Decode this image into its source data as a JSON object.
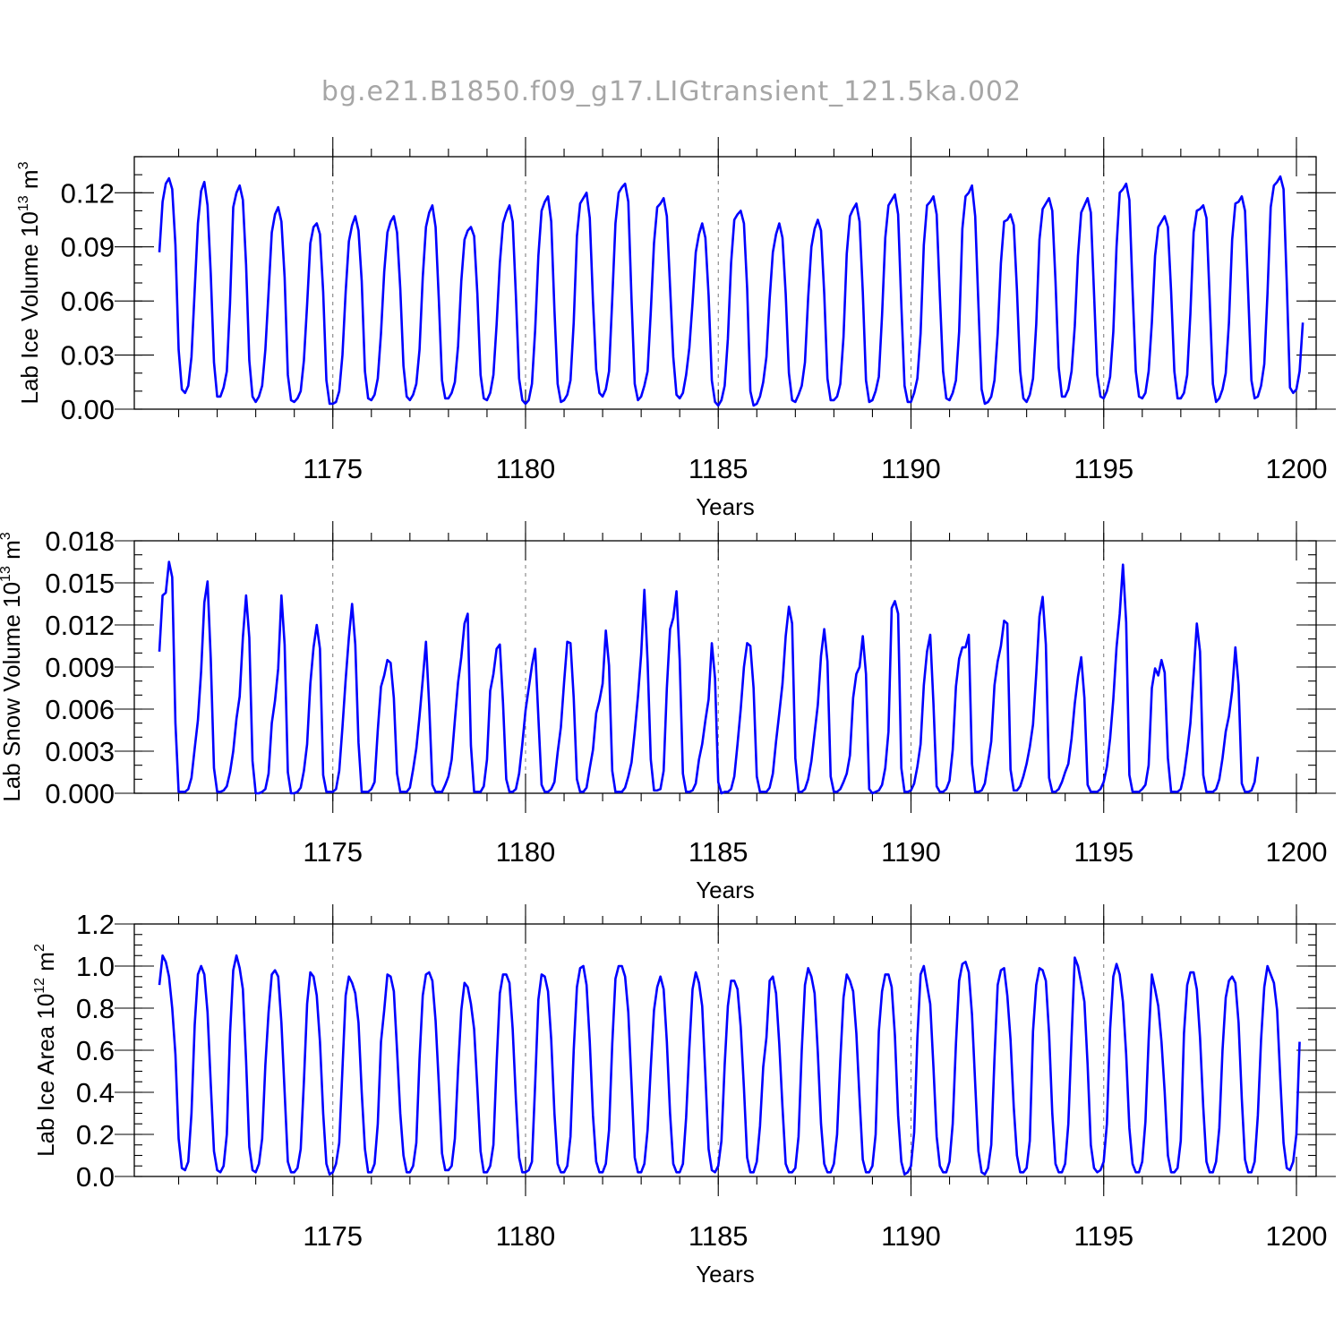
{
  "figure": {
    "title": "bg.e21.B1850.f09_g17.LIGtransient_121.5ka.002"
  },
  "chart_data": [
    {
      "type": "line",
      "xlabel": "Years",
      "ylabel": "Lab Ice Volume 10",
      "ylabel_exp": "13",
      "ylabel_unit": " m",
      "ylabel_unit_exp": "3",
      "xlim": [
        1170.5,
        1200
      ],
      "ylim": [
        0,
        0.14
      ],
      "x_ticks": [
        1175,
        1180,
        1185,
        1190,
        1195,
        1200
      ],
      "y_ticks": [
        0,
        0.03,
        0.06,
        0.09,
        0.12
      ],
      "y_tick_labels": [
        "0.00",
        "0.03",
        "0.06",
        "0.09",
        "0.12"
      ],
      "y_minor_step": 0.01,
      "grid": "dashed vertical at 1175, 1180, 1185, 1190, 1195",
      "color": "#0000ff",
      "x_start": 1170.5,
      "x_step": 0.08333,
      "values": [
        0.087,
        0.115,
        0.125,
        0.128,
        0.122,
        0.091,
        0.033,
        0.011,
        0.009,
        0.013,
        0.029,
        0.066,
        0.103,
        0.121,
        0.126,
        0.113,
        0.075,
        0.026,
        0.007,
        0.007,
        0.012,
        0.021,
        0.059,
        0.112,
        0.12,
        0.124,
        0.116,
        0.08,
        0.027,
        0.007,
        0.004,
        0.007,
        0.013,
        0.033,
        0.065,
        0.098,
        0.108,
        0.112,
        0.104,
        0.073,
        0.019,
        0.005,
        0.004,
        0.006,
        0.01,
        0.027,
        0.058,
        0.092,
        0.101,
        0.103,
        0.097,
        0.065,
        0.016,
        0.003,
        0.003,
        0.004,
        0.01,
        0.03,
        0.065,
        0.093,
        0.102,
        0.107,
        0.099,
        0.071,
        0.021,
        0.006,
        0.005,
        0.008,
        0.017,
        0.042,
        0.076,
        0.098,
        0.104,
        0.107,
        0.098,
        0.067,
        0.024,
        0.007,
        0.005,
        0.008,
        0.014,
        0.033,
        0.073,
        0.101,
        0.109,
        0.113,
        0.101,
        0.061,
        0.016,
        0.006,
        0.006,
        0.009,
        0.015,
        0.035,
        0.071,
        0.094,
        0.099,
        0.101,
        0.096,
        0.064,
        0.019,
        0.006,
        0.005,
        0.009,
        0.019,
        0.047,
        0.081,
        0.103,
        0.109,
        0.113,
        0.104,
        0.063,
        0.017,
        0.005,
        0.003,
        0.005,
        0.014,
        0.044,
        0.085,
        0.11,
        0.115,
        0.118,
        0.104,
        0.055,
        0.014,
        0.004,
        0.005,
        0.008,
        0.016,
        0.048,
        0.096,
        0.114,
        0.117,
        0.12,
        0.106,
        0.06,
        0.022,
        0.009,
        0.007,
        0.011,
        0.021,
        0.061,
        0.103,
        0.12,
        0.123,
        0.125,
        0.115,
        0.061,
        0.014,
        0.005,
        0.007,
        0.013,
        0.021,
        0.054,
        0.092,
        0.112,
        0.114,
        0.117,
        0.107,
        0.068,
        0.029,
        0.008,
        0.006,
        0.009,
        0.019,
        0.034,
        0.059,
        0.087,
        0.097,
        0.103,
        0.095,
        0.063,
        0.016,
        0.004,
        0.002,
        0.005,
        0.013,
        0.039,
        0.081,
        0.105,
        0.108,
        0.11,
        0.103,
        0.067,
        0.01,
        0.002,
        0.003,
        0.007,
        0.015,
        0.029,
        0.061,
        0.087,
        0.097,
        0.103,
        0.095,
        0.064,
        0.02,
        0.005,
        0.004,
        0.008,
        0.013,
        0.026,
        0.062,
        0.09,
        0.1,
        0.105,
        0.099,
        0.064,
        0.017,
        0.005,
        0.005,
        0.007,
        0.014,
        0.04,
        0.086,
        0.107,
        0.111,
        0.114,
        0.104,
        0.065,
        0.016,
        0.004,
        0.005,
        0.01,
        0.018,
        0.052,
        0.095,
        0.113,
        0.116,
        0.119,
        0.108,
        0.058,
        0.013,
        0.004,
        0.004,
        0.009,
        0.017,
        0.042,
        0.091,
        0.113,
        0.115,
        0.118,
        0.108,
        0.063,
        0.021,
        0.006,
        0.005,
        0.009,
        0.016,
        0.043,
        0.1,
        0.118,
        0.12,
        0.124,
        0.107,
        0.058,
        0.011,
        0.003,
        0.004,
        0.007,
        0.016,
        0.042,
        0.081,
        0.104,
        0.105,
        0.108,
        0.102,
        0.066,
        0.021,
        0.006,
        0.004,
        0.008,
        0.017,
        0.047,
        0.094,
        0.111,
        0.114,
        0.117,
        0.11,
        0.071,
        0.023,
        0.007,
        0.007,
        0.011,
        0.021,
        0.046,
        0.085,
        0.109,
        0.113,
        0.117,
        0.109,
        0.064,
        0.019,
        0.007,
        0.006,
        0.01,
        0.018,
        0.043,
        0.09,
        0.12,
        0.122,
        0.125,
        0.116,
        0.066,
        0.021,
        0.007,
        0.006,
        0.009,
        0.021,
        0.048,
        0.085,
        0.101,
        0.104,
        0.107,
        0.101,
        0.065,
        0.021,
        0.006,
        0.006,
        0.009,
        0.019,
        0.053,
        0.098,
        0.11,
        0.111,
        0.113,
        0.106,
        0.061,
        0.014,
        0.004,
        0.006,
        0.011,
        0.02,
        0.048,
        0.094,
        0.114,
        0.115,
        0.118,
        0.11,
        0.064,
        0.016,
        0.006,
        0.007,
        0.013,
        0.025,
        0.064,
        0.112,
        0.124,
        0.126,
        0.129,
        0.122,
        0.07,
        0.012,
        0.009,
        0.011,
        0.021,
        0.048
      ]
    },
    {
      "type": "line",
      "xlabel": "Years",
      "ylabel": "Lab Snow Volume 10",
      "ylabel_exp": "13",
      "ylabel_unit": " m",
      "ylabel_unit_exp": "3",
      "xlim": [
        1170.5,
        1200
      ],
      "ylim": [
        0,
        0.018
      ],
      "x_ticks": [
        1175,
        1180,
        1185,
        1190,
        1195,
        1200
      ],
      "y_ticks": [
        0,
        0.003,
        0.006,
        0.009,
        0.012,
        0.015,
        0.018
      ],
      "y_tick_labels": [
        "0.000",
        "0.003",
        "0.006",
        "0.009",
        "0.012",
        "0.015",
        "0.018"
      ],
      "y_minor_step": 0.001,
      "grid": "dashed vertical at 1175, 1180, 1185, 1190, 1195",
      "color": "#0000ff",
      "x_start": 1170.5,
      "x_step": 0.08333,
      "values": [
        0.0101,
        0.0141,
        0.0143,
        0.0165,
        0.0154,
        0.005,
        0.0001,
        0.0001,
        0.0001,
        0.0003,
        0.0011,
        0.0032,
        0.0052,
        0.0087,
        0.0136,
        0.0151,
        0.0096,
        0.0018,
        0.0001,
        0.0001,
        0.0002,
        0.0005,
        0.0015,
        0.003,
        0.0053,
        0.0069,
        0.0111,
        0.0141,
        0.0111,
        0.0023,
        0,
        0,
        0.0001,
        0.0003,
        0.0014,
        0.005,
        0.0066,
        0.0089,
        0.0141,
        0.0106,
        0.0015,
        0,
        0,
        0.0001,
        0.0004,
        0.0016,
        0.0035,
        0.0078,
        0.0104,
        0.012,
        0.0103,
        0.0013,
        0.0001,
        0.0001,
        0.0001,
        0.0003,
        0.0016,
        0.0047,
        0.0081,
        0.0111,
        0.0135,
        0.0106,
        0.0036,
        0.0001,
        0.0001,
        0.0001,
        0.0003,
        0.0008,
        0.0045,
        0.0076,
        0.0084,
        0.0095,
        0.0093,
        0.0068,
        0.0014,
        0.0001,
        0.0001,
        0.0001,
        0.0004,
        0.0017,
        0.0032,
        0.0055,
        0.0081,
        0.0108,
        0.0063,
        0.0006,
        0.0001,
        0.0001,
        0.0001,
        0.0006,
        0.0012,
        0.0024,
        0.0052,
        0.0079,
        0.0097,
        0.0121,
        0.0128,
        0.0034,
        0.0001,
        0.0001,
        0.0001,
        0.0005,
        0.0024,
        0.0073,
        0.0085,
        0.0103,
        0.0106,
        0.0064,
        0.001,
        0.0001,
        0.0001,
        0.0003,
        0.0014,
        0.0035,
        0.0059,
        0.0075,
        0.0091,
        0.0103,
        0.0054,
        0.0006,
        0.0001,
        0.0001,
        0.0003,
        0.0008,
        0.0029,
        0.0047,
        0.0079,
        0.0108,
        0.0107,
        0.0068,
        0.001,
        0.0001,
        0.0001,
        0.0004,
        0.0018,
        0.0031,
        0.0057,
        0.0066,
        0.0078,
        0.0116,
        0.0091,
        0.0016,
        0.0001,
        0.0001,
        0.0001,
        0.0004,
        0.0012,
        0.0022,
        0.0044,
        0.0069,
        0.0099,
        0.0145,
        0.0094,
        0.0024,
        0.0002,
        0.0002,
        0.0003,
        0.0016,
        0.0075,
        0.0117,
        0.0125,
        0.0144,
        0.0095,
        0.0014,
        0.0001,
        0.0001,
        0.0002,
        0.0007,
        0.0024,
        0.0035,
        0.0052,
        0.0067,
        0.0107,
        0.0082,
        0.0008,
        0,
        0.0001,
        0.0001,
        0.0003,
        0.0012,
        0.0035,
        0.006,
        0.009,
        0.0107,
        0.0105,
        0.0075,
        0.0012,
        0.0001,
        0.0001,
        0.0001,
        0.0004,
        0.0014,
        0.0037,
        0.0057,
        0.0078,
        0.0112,
        0.0133,
        0.0121,
        0.0025,
        0.0001,
        0.0001,
        0.0003,
        0.001,
        0.0023,
        0.0043,
        0.0063,
        0.0098,
        0.0117,
        0.0094,
        0.0012,
        0.0001,
        0.0001,
        0.0003,
        0.0008,
        0.0014,
        0.0027,
        0.0068,
        0.0085,
        0.009,
        0.0112,
        0.0085,
        0.0003,
        0,
        0.0001,
        0.0002,
        0.0006,
        0.0018,
        0.0044,
        0.0132,
        0.0137,
        0.0128,
        0.0018,
        0.0001,
        0.0001,
        0.0002,
        0.0007,
        0.0019,
        0.0035,
        0.0077,
        0.0101,
        0.0113,
        0.0064,
        0.0005,
        0.0001,
        0.0001,
        0.0003,
        0.0009,
        0.0031,
        0.0076,
        0.0096,
        0.0104,
        0.0104,
        0.0113,
        0.0021,
        0.0001,
        0.0001,
        0.0002,
        0.0007,
        0.0022,
        0.0037,
        0.0077,
        0.0094,
        0.0105,
        0.0123,
        0.0121,
        0.0017,
        0.0002,
        0.0002,
        0.0005,
        0.0012,
        0.0021,
        0.0033,
        0.0049,
        0.0085,
        0.0126,
        0.014,
        0.0106,
        0.0011,
        0.0001,
        0.0001,
        0.0003,
        0.0008,
        0.0015,
        0.0021,
        0.0039,
        0.0064,
        0.0083,
        0.0097,
        0.0068,
        0.0006,
        0.0001,
        0.0001,
        0.0001,
        0.0003,
        0.0008,
        0.0019,
        0.0039,
        0.0067,
        0.0104,
        0.0128,
        0.0163,
        0.0122,
        0.0013,
        0.0001,
        0.0001,
        0.0001,
        0.0003,
        0.0006,
        0.002,
        0.0075,
        0.0089,
        0.0084,
        0.0095,
        0.0086,
        0.0025,
        0.0001,
        0.0001,
        0.0001,
        0.0003,
        0.0013,
        0.003,
        0.005,
        0.0085,
        0.0121,
        0.0101,
        0.0013,
        0.0001,
        0.0001,
        0.0001,
        0.0003,
        0.001,
        0.0025,
        0.0044,
        0.0055,
        0.0073,
        0.0104,
        0.0077,
        0.0007,
        0.0001,
        0.0001,
        0.0002,
        0.0008,
        0.0026
      ]
    },
    {
      "type": "line",
      "xlabel": "Years",
      "ylabel": "Lab Ice Area 10",
      "ylabel_exp": "12",
      "ylabel_unit": " m",
      "ylabel_unit_exp": "2",
      "xlim": [
        1170.5,
        1200
      ],
      "ylim": [
        0,
        1.2
      ],
      "x_ticks": [
        1175,
        1180,
        1185,
        1190,
        1195,
        1200
      ],
      "y_ticks": [
        0,
        0.2,
        0.4,
        0.6,
        0.8,
        1.0,
        1.2
      ],
      "y_tick_labels": [
        "0.0",
        "0.2",
        "0.4",
        "0.6",
        "0.8",
        "1.0",
        "1.2"
      ],
      "y_minor_step": 0.05,
      "grid": "dashed vertical at 1175, 1180, 1185, 1190, 1195",
      "color": "#0000ff",
      "x_start": 1170.5,
      "x_step": 0.08333,
      "values": [
        0.91,
        1.05,
        1.02,
        0.95,
        0.8,
        0.58,
        0.18,
        0.04,
        0.03,
        0.07,
        0.3,
        0.72,
        0.96,
        1.0,
        0.96,
        0.78,
        0.44,
        0.12,
        0.03,
        0.02,
        0.05,
        0.2,
        0.68,
        0.98,
        1.05,
        0.99,
        0.89,
        0.55,
        0.14,
        0.03,
        0.02,
        0.06,
        0.18,
        0.53,
        0.78,
        0.96,
        0.98,
        0.95,
        0.73,
        0.4,
        0.07,
        0.02,
        0.02,
        0.04,
        0.13,
        0.45,
        0.82,
        0.97,
        0.95,
        0.86,
        0.64,
        0.3,
        0.06,
        0.01,
        0.02,
        0.06,
        0.16,
        0.51,
        0.86,
        0.95,
        0.92,
        0.87,
        0.73,
        0.4,
        0.13,
        0.02,
        0.02,
        0.06,
        0.25,
        0.64,
        0.79,
        0.96,
        0.95,
        0.88,
        0.6,
        0.3,
        0.1,
        0.02,
        0.02,
        0.05,
        0.16,
        0.56,
        0.86,
        0.96,
        0.97,
        0.93,
        0.74,
        0.44,
        0.11,
        0.03,
        0.03,
        0.05,
        0.18,
        0.51,
        0.79,
        0.92,
        0.9,
        0.82,
        0.7,
        0.42,
        0.12,
        0.02,
        0.02,
        0.05,
        0.15,
        0.54,
        0.87,
        0.96,
        0.96,
        0.92,
        0.7,
        0.37,
        0.09,
        0.02,
        0.02,
        0.03,
        0.07,
        0.44,
        0.84,
        0.96,
        0.95,
        0.88,
        0.65,
        0.3,
        0.06,
        0.02,
        0.02,
        0.05,
        0.19,
        0.6,
        0.9,
        0.99,
        1.0,
        0.91,
        0.64,
        0.29,
        0.07,
        0.02,
        0.02,
        0.06,
        0.22,
        0.63,
        0.94,
        1.0,
        1.0,
        0.95,
        0.78,
        0.44,
        0.09,
        0.02,
        0.02,
        0.06,
        0.22,
        0.52,
        0.79,
        0.9,
        0.95,
        0.89,
        0.64,
        0.3,
        0.06,
        0.02,
        0.02,
        0.06,
        0.28,
        0.61,
        0.89,
        0.97,
        0.92,
        0.81,
        0.48,
        0.13,
        0.03,
        0.02,
        0.05,
        0.17,
        0.53,
        0.81,
        0.93,
        0.93,
        0.89,
        0.71,
        0.42,
        0.09,
        0.02,
        0.02,
        0.07,
        0.24,
        0.52,
        0.66,
        0.93,
        0.95,
        0.87,
        0.63,
        0.33,
        0.06,
        0.02,
        0.02,
        0.04,
        0.19,
        0.6,
        0.91,
        0.99,
        0.95,
        0.87,
        0.59,
        0.25,
        0.06,
        0.02,
        0.02,
        0.06,
        0.2,
        0.55,
        0.85,
        0.96,
        0.93,
        0.88,
        0.68,
        0.37,
        0.08,
        0.02,
        0.02,
        0.05,
        0.2,
        0.69,
        0.88,
        0.96,
        0.96,
        0.9,
        0.67,
        0.29,
        0.07,
        0.01,
        0.02,
        0.05,
        0.21,
        0.66,
        0.96,
        1.0,
        0.91,
        0.82,
        0.52,
        0.19,
        0.05,
        0.02,
        0.02,
        0.07,
        0.25,
        0.63,
        0.93,
        1.01,
        1.02,
        0.97,
        0.77,
        0.44,
        0.12,
        0.02,
        0.01,
        0.04,
        0.15,
        0.56,
        0.91,
        0.98,
        0.99,
        0.86,
        0.65,
        0.33,
        0.1,
        0.02,
        0.02,
        0.04,
        0.17,
        0.69,
        0.91,
        0.99,
        0.98,
        0.93,
        0.68,
        0.3,
        0.06,
        0.02,
        0.02,
        0.06,
        0.25,
        0.66,
        1.04,
        1.0,
        0.92,
        0.83,
        0.53,
        0.15,
        0.04,
        0.02,
        0.03,
        0.07,
        0.25,
        0.7,
        0.95,
        1.01,
        0.96,
        0.83,
        0.58,
        0.23,
        0.06,
        0.02,
        0.02,
        0.07,
        0.26,
        0.65,
        0.96,
        0.89,
        0.81,
        0.64,
        0.4,
        0.1,
        0.02,
        0.02,
        0.04,
        0.17,
        0.68,
        0.91,
        0.97,
        0.97,
        0.89,
        0.66,
        0.33,
        0.07,
        0.02,
        0.02,
        0.07,
        0.23,
        0.6,
        0.85,
        0.93,
        0.95,
        0.92,
        0.73,
        0.37,
        0.08,
        0.02,
        0.02,
        0.07,
        0.29,
        0.65,
        0.9,
        1.0,
        0.96,
        0.92,
        0.79,
        0.46,
        0.16,
        0.04,
        0.03,
        0.07,
        0.2,
        0.64
      ]
    }
  ]
}
